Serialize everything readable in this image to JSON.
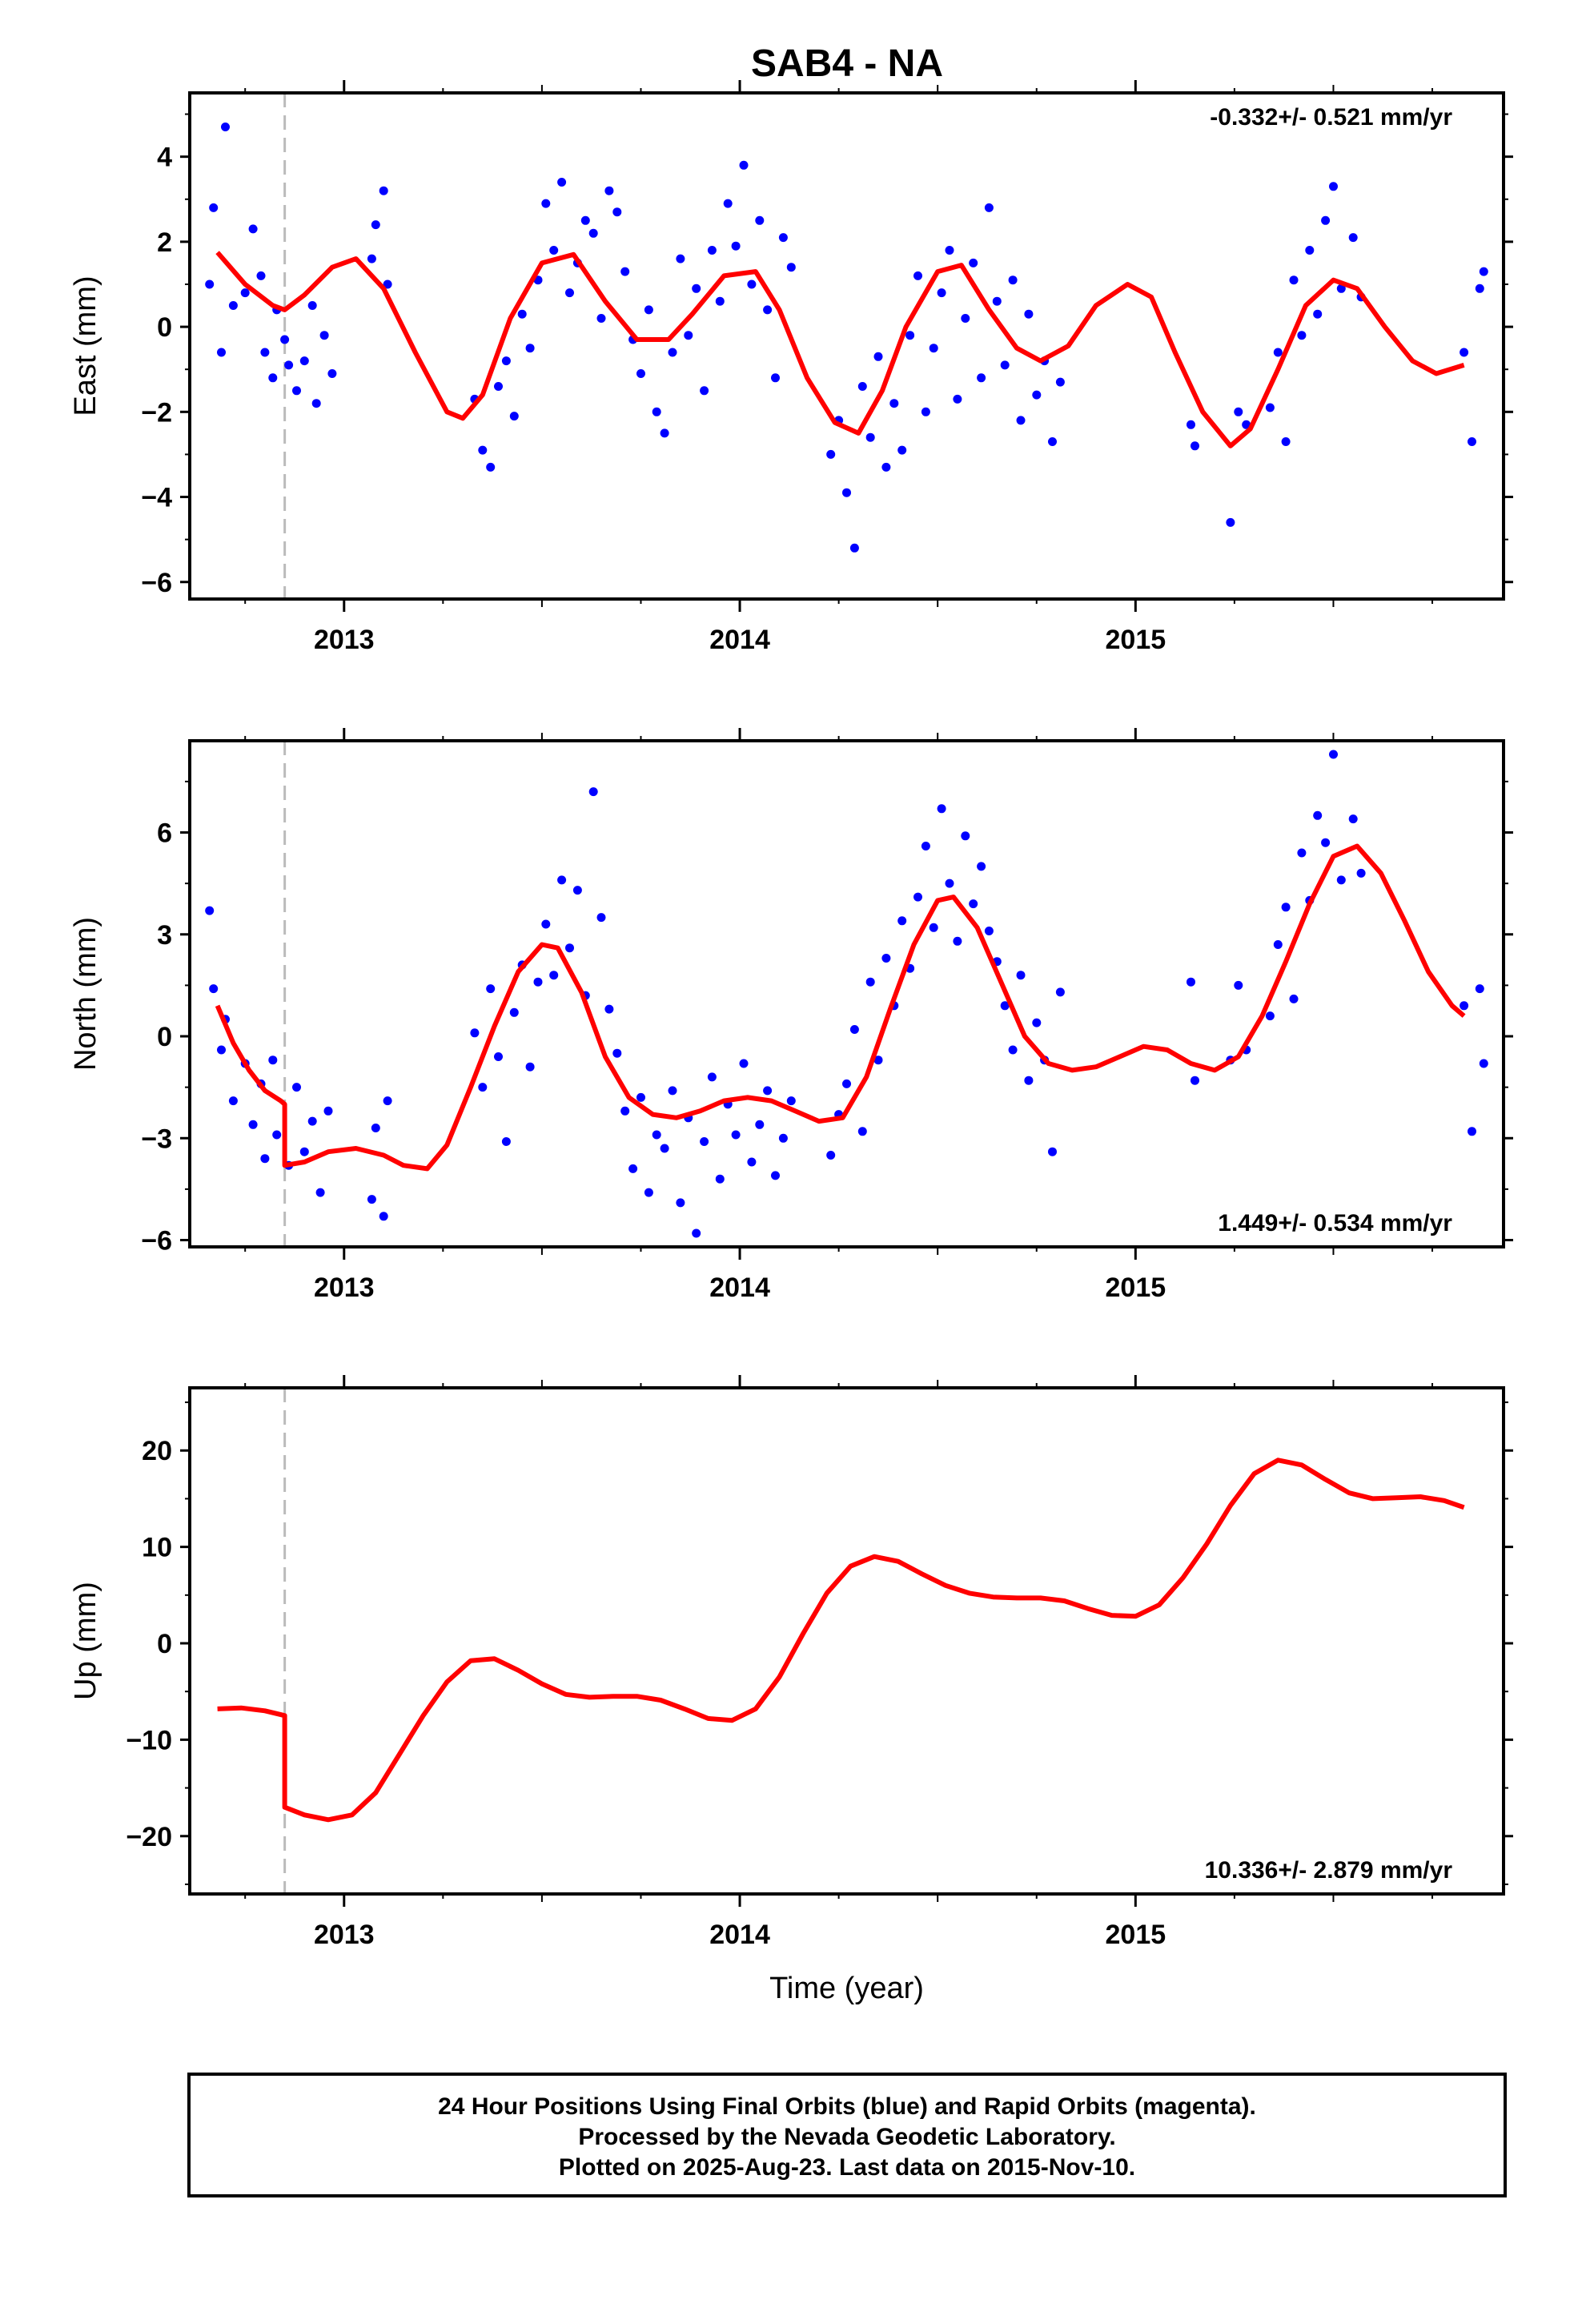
{
  "title": "SAB4 - NA",
  "footer": {
    "line1": "24 Hour Positions Using Final Orbits (blue) and Rapid Orbits (magenta).",
    "line2": "Processed by the Nevada Geodetic Laboratory.",
    "line3": "Plotted on 2025-Aug-23. Last data on 2015-Nov-10."
  },
  "colors": {
    "final_points": "#0000ff",
    "model_fit": "#ff0000",
    "offset_marker": "#bbbbbb"
  },
  "chart_data": [
    {
      "type": "scatter",
      "xlabel": "",
      "ylabel": "East (mm)",
      "xlim": [
        2012.61,
        2015.93
      ],
      "ylim": [
        -6.4,
        5.5
      ],
      "xticks": [
        "2013",
        "2014",
        "2015"
      ],
      "yticks": [
        -6,
        -4,
        -2,
        0,
        2,
        4
      ],
      "rate_label": "-0.332+/- 0.521 mm/yr",
      "rate_position": "top-right",
      "offset_epoch": 2012.85,
      "fit_line_x": [
        2012.68,
        2012.75,
        2012.82,
        2012.85,
        2012.9,
        2012.97,
        2013.03,
        2013.1,
        2013.18,
        2013.26,
        2013.3,
        2013.35,
        2013.42,
        2013.5,
        2013.58,
        2013.66,
        2013.74,
        2013.82,
        2013.88,
        2013.96,
        2014.04,
        2014.1,
        2014.17,
        2014.24,
        2014.3,
        2014.36,
        2014.42,
        2014.5,
        2014.56,
        2014.63,
        2014.7,
        2014.76,
        2014.83,
        2014.9,
        2014.98,
        2015.04,
        2015.1,
        2015.17,
        2015.24,
        2015.29,
        2015.36,
        2015.43,
        2015.5,
        2015.56,
        2015.63,
        2015.7,
        2015.76,
        2015.83
      ],
      "fit_line_y": [
        1.75,
        1.0,
        0.5,
        0.4,
        0.75,
        1.4,
        1.6,
        0.9,
        -0.6,
        -2.0,
        -2.15,
        -1.6,
        0.2,
        1.5,
        1.7,
        0.6,
        -0.3,
        -0.3,
        0.3,
        1.2,
        1.3,
        0.4,
        -1.2,
        -2.25,
        -2.5,
        -1.5,
        0.0,
        1.3,
        1.45,
        0.4,
        -0.5,
        -0.8,
        -0.45,
        0.5,
        1.0,
        0.7,
        -0.6,
        -2.0,
        -2.8,
        -2.4,
        -1.0,
        0.5,
        1.1,
        0.9,
        0.0,
        -0.8,
        -1.1,
        -0.9
      ],
      "points_x": [
        2012.66,
        2012.67,
        2012.69,
        2012.7,
        2012.72,
        2012.75,
        2012.77,
        2012.79,
        2012.8,
        2012.82,
        2012.83,
        2012.85,
        2012.86,
        2012.88,
        2012.9,
        2012.92,
        2012.93,
        2012.95,
        2012.97,
        2013.07,
        2013.08,
        2013.1,
        2013.11,
        2013.33,
        2013.35,
        2013.37,
        2013.39,
        2013.41,
        2013.43,
        2013.45,
        2013.47,
        2013.49,
        2013.51,
        2013.53,
        2013.55,
        2013.57,
        2013.59,
        2013.61,
        2013.63,
        2013.65,
        2013.67,
        2013.69,
        2013.71,
        2013.73,
        2013.75,
        2013.77,
        2013.79,
        2013.81,
        2013.83,
        2013.85,
        2013.87,
        2013.89,
        2013.91,
        2013.93,
        2013.95,
        2013.97,
        2013.99,
        2014.01,
        2014.03,
        2014.05,
        2014.07,
        2014.09,
        2014.11,
        2014.13,
        2014.23,
        2014.25,
        2014.27,
        2014.29,
        2014.31,
        2014.33,
        2014.35,
        2014.37,
        2014.39,
        2014.41,
        2014.43,
        2014.45,
        2014.47,
        2014.49,
        2014.51,
        2014.53,
        2014.55,
        2014.57,
        2014.59,
        2014.61,
        2014.63,
        2014.65,
        2014.67,
        2014.69,
        2014.71,
        2014.73,
        2014.75,
        2014.77,
        2014.79,
        2014.81,
        2015.14,
        2015.15,
        2015.24,
        2015.26,
        2015.28,
        2015.34,
        2015.36,
        2015.38,
        2015.4,
        2015.42,
        2015.44,
        2015.46,
        2015.48,
        2015.5,
        2015.52,
        2015.55,
        2015.57,
        2015.83,
        2015.85,
        2015.87,
        2015.88
      ],
      "points_y": [
        1.0,
        2.8,
        -0.6,
        4.7,
        0.5,
        0.8,
        2.3,
        1.2,
        -0.6,
        -1.2,
        0.4,
        -0.3,
        -0.9,
        -1.5,
        -0.8,
        0.5,
        -1.8,
        -0.2,
        -1.1,
        1.6,
        2.4,
        3.2,
        1.0,
        -1.7,
        -2.9,
        -3.3,
        -1.4,
        -0.8,
        -2.1,
        0.3,
        -0.5,
        1.1,
        2.9,
        1.8,
        3.4,
        0.8,
        1.5,
        2.5,
        2.2,
        0.2,
        3.2,
        2.7,
        1.3,
        -0.3,
        -1.1,
        0.4,
        -2.0,
        -2.5,
        -0.6,
        1.6,
        -0.2,
        0.9,
        -1.5,
        1.8,
        0.6,
        2.9,
        1.9,
        3.8,
        1.0,
        2.5,
        0.4,
        -1.2,
        2.1,
        1.4,
        -3.0,
        -2.2,
        -3.9,
        -5.2,
        -1.4,
        -2.6,
        -0.7,
        -3.3,
        -1.8,
        -2.9,
        -0.2,
        1.2,
        -2.0,
        -0.5,
        0.8,
        1.8,
        -1.7,
        0.2,
        1.5,
        -1.2,
        2.8,
        0.6,
        -0.9,
        1.1,
        -2.2,
        0.3,
        -1.6,
        -0.8,
        -2.7,
        -1.3,
        -2.3,
        -2.8,
        -4.6,
        -2.0,
        -2.3,
        -1.9,
        -0.6,
        -2.7,
        1.1,
        -0.2,
        1.8,
        0.3,
        2.5,
        3.3,
        0.9,
        2.1,
        0.7,
        -0.6,
        -2.7,
        0.9,
        1.3
      ]
    },
    {
      "type": "scatter",
      "xlabel": "",
      "ylabel": "North (mm)",
      "xlim": [
        2012.61,
        2015.93
      ],
      "ylim": [
        -6.2,
        8.7
      ],
      "xticks": [
        "2013",
        "2014",
        "2015"
      ],
      "yticks": [
        -6,
        -3,
        0,
        3,
        6
      ],
      "rate_label": "1.449+/- 0.534 mm/yr",
      "rate_position": "bottom-right",
      "offset_epoch": 2012.85,
      "fit_line_x": [
        2012.68,
        2012.72,
        2012.76,
        2012.8,
        2012.84,
        2012.85,
        2012.85,
        2012.9,
        2012.96,
        2013.03,
        2013.1,
        2013.15,
        2013.21,
        2013.26,
        2013.32,
        2013.38,
        2013.44,
        2013.5,
        2013.54,
        2013.6,
        2013.66,
        2013.72,
        2013.78,
        2013.84,
        2013.9,
        2013.96,
        2014.02,
        2014.08,
        2014.14,
        2014.2,
        2014.26,
        2014.32,
        2014.38,
        2014.44,
        2014.5,
        2014.54,
        2014.6,
        2014.66,
        2014.72,
        2014.78,
        2014.84,
        2014.9,
        2014.96,
        2015.02,
        2015.08,
        2015.14,
        2015.2,
        2015.26,
        2015.32,
        2015.38,
        2015.44,
        2015.5,
        2015.56,
        2015.62,
        2015.68,
        2015.74,
        2015.8,
        2015.83
      ],
      "fit_line_y": [
        0.9,
        -0.2,
        -1.0,
        -1.6,
        -1.9,
        -2.0,
        -3.8,
        -3.7,
        -3.4,
        -3.3,
        -3.5,
        -3.8,
        -3.9,
        -3.2,
        -1.5,
        0.3,
        1.9,
        2.7,
        2.6,
        1.3,
        -0.6,
        -1.8,
        -2.3,
        -2.4,
        -2.2,
        -1.9,
        -1.8,
        -1.9,
        -2.2,
        -2.5,
        -2.4,
        -1.2,
        0.8,
        2.7,
        4.0,
        4.1,
        3.2,
        1.6,
        0.0,
        -0.8,
        -1.0,
        -0.9,
        -0.6,
        -0.3,
        -0.4,
        -0.8,
        -1.0,
        -0.6,
        0.6,
        2.2,
        3.9,
        5.3,
        5.6,
        4.8,
        3.4,
        1.9,
        0.9,
        0.6
      ],
      "points_x": [
        2012.66,
        2012.67,
        2012.69,
        2012.7,
        2012.72,
        2012.75,
        2012.77,
        2012.79,
        2012.8,
        2012.82,
        2012.83,
        2012.86,
        2012.88,
        2012.9,
        2012.92,
        2012.94,
        2012.96,
        2013.07,
        2013.08,
        2013.1,
        2013.11,
        2013.33,
        2013.35,
        2013.37,
        2013.39,
        2013.41,
        2013.43,
        2013.45,
        2013.47,
        2013.49,
        2013.51,
        2013.53,
        2013.55,
        2013.57,
        2013.59,
        2013.61,
        2013.63,
        2013.65,
        2013.67,
        2013.69,
        2013.71,
        2013.73,
        2013.75,
        2013.77,
        2013.79,
        2013.81,
        2013.83,
        2013.85,
        2013.87,
        2013.89,
        2013.91,
        2013.93,
        2013.95,
        2013.97,
        2013.99,
        2014.01,
        2014.03,
        2014.05,
        2014.07,
        2014.09,
        2014.11,
        2014.13,
        2014.23,
        2014.25,
        2014.27,
        2014.29,
        2014.31,
        2014.33,
        2014.35,
        2014.37,
        2014.39,
        2014.41,
        2014.43,
        2014.45,
        2014.47,
        2014.49,
        2014.51,
        2014.53,
        2014.55,
        2014.57,
        2014.59,
        2014.61,
        2014.63,
        2014.65,
        2014.67,
        2014.69,
        2014.71,
        2014.73,
        2014.75,
        2014.77,
        2014.79,
        2014.81,
        2015.14,
        2015.15,
        2015.24,
        2015.26,
        2015.28,
        2015.34,
        2015.36,
        2015.38,
        2015.4,
        2015.42,
        2015.44,
        2015.46,
        2015.48,
        2015.5,
        2015.52,
        2015.55,
        2015.57,
        2015.83,
        2015.85,
        2015.87,
        2015.88
      ],
      "points_y": [
        3.7,
        1.4,
        -0.4,
        0.5,
        -1.9,
        -0.8,
        -2.6,
        -1.4,
        -3.6,
        -0.7,
        -2.9,
        -3.8,
        -1.5,
        -3.4,
        -2.5,
        -4.6,
        -2.2,
        -4.8,
        -2.7,
        -5.3,
        -1.9,
        0.1,
        -1.5,
        1.4,
        -0.6,
        -3.1,
        0.7,
        2.1,
        -0.9,
        1.6,
        3.3,
        1.8,
        4.6,
        2.6,
        4.3,
        1.2,
        7.2,
        3.5,
        0.8,
        -0.5,
        -2.2,
        -3.9,
        -1.8,
        -4.6,
        -2.9,
        -3.3,
        -1.6,
        -4.9,
        -2.4,
        -5.8,
        -3.1,
        -1.2,
        -4.2,
        -2.0,
        -2.9,
        -0.8,
        -3.7,
        -2.6,
        -1.6,
        -4.1,
        -3.0,
        -1.9,
        -3.5,
        -2.3,
        -1.4,
        0.2,
        -2.8,
        1.6,
        -0.7,
        2.3,
        0.9,
        3.4,
        2.0,
        4.1,
        5.6,
        3.2,
        6.7,
        4.5,
        2.8,
        5.9,
        3.9,
        5.0,
        3.1,
        2.2,
        0.9,
        -0.4,
        1.8,
        -1.3,
        0.4,
        -0.7,
        -3.4,
        1.3,
        1.6,
        -1.3,
        -0.7,
        1.5,
        -0.4,
        0.6,
        2.7,
        3.8,
        1.1,
        5.4,
        4.0,
        6.5,
        5.7,
        8.3,
        4.6,
        6.4,
        4.8,
        0.9,
        -2.8,
        1.4,
        -0.8
      ]
    },
    {
      "type": "scatter",
      "xlabel": "Time (year)",
      "ylabel": "Up (mm)",
      "xlim": [
        2012.61,
        2015.93
      ],
      "ylim": [
        -26,
        26.5
      ],
      "xticks": [
        "2013",
        "2014",
        "2015"
      ],
      "yticks": [
        -20,
        -10,
        0,
        10,
        20
      ],
      "rate_label": "10.336+/- 2.879 mm/yr",
      "rate_position": "bottom-right",
      "offset_epoch": 2012.85,
      "fit_line_x": [
        2012.68,
        2012.74,
        2012.8,
        2012.84,
        2012.85,
        2012.85,
        2012.9,
        2012.96,
        2013.02,
        2013.08,
        2013.14,
        2013.2,
        2013.26,
        2013.32,
        2013.38,
        2013.44,
        2013.5,
        2013.56,
        2013.62,
        2013.68,
        2013.74,
        2013.8,
        2013.86,
        2013.92,
        2013.98,
        2014.04,
        2014.1,
        2014.16,
        2014.22,
        2014.28,
        2014.34,
        2014.4,
        2014.46,
        2014.52,
        2014.58,
        2014.64,
        2014.7,
        2014.76,
        2014.82,
        2014.88,
        2014.94,
        2015.0,
        2015.06,
        2015.12,
        2015.18,
        2015.24,
        2015.3,
        2015.36,
        2015.42,
        2015.48,
        2015.54,
        2015.6,
        2015.66,
        2015.72,
        2015.78,
        2015.83
      ],
      "fit_line_y": [
        -6.8,
        -6.7,
        -7.0,
        -7.4,
        -7.5,
        -17.0,
        -17.8,
        -18.3,
        -17.8,
        -15.5,
        -11.5,
        -7.5,
        -4.0,
        -1.8,
        -1.6,
        -2.8,
        -4.2,
        -5.3,
        -5.6,
        -5.5,
        -5.5,
        -5.9,
        -6.8,
        -7.8,
        -8.0,
        -6.8,
        -3.5,
        1.0,
        5.2,
        8.0,
        9.0,
        8.5,
        7.2,
        6.0,
        5.2,
        4.8,
        4.7,
        4.7,
        4.4,
        3.6,
        2.9,
        2.8,
        4.0,
        6.8,
        10.3,
        14.3,
        17.6,
        19.0,
        18.5,
        17.0,
        15.6,
        15.0,
        15.1,
        15.2,
        14.8,
        14.1
      ]
    }
  ]
}
